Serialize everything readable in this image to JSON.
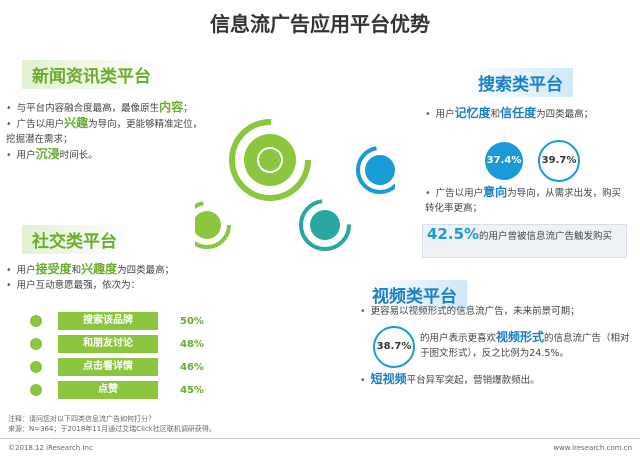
{
  "title": "信息流广告应用平台优势",
  "news": {
    "title": "新闻资讯类平台",
    "items": [
      [
        "与平台内容融合度最高，最像原生",
        {
          "em": "内容"
        },
        "；"
      ],
      [
        "广告以用户",
        {
          "em": "兴趣"
        },
        "为导向，更能够精准定位，挖掘潜在需求；"
      ],
      [
        "用户",
        {
          "em": "沉浸"
        },
        "时间长。"
      ]
    ]
  },
  "social": {
    "title": "社交类平台",
    "items": [
      [
        "用户",
        {
          "em": "接受度"
        },
        "和",
        {
          "em": "兴趣度"
        },
        "为四类最高；"
      ],
      [
        "用户互动意愿最强，依次为："
      ]
    ],
    "ranking": [
      [
        "搜索该品牌",
        "50%"
      ],
      [
        "和朋友讨论",
        "48%"
      ],
      [
        "点击看详情",
        "46%"
      ],
      [
        "点赞",
        "45%"
      ]
    ]
  },
  "search": {
    "title": "搜索类平台",
    "items": [
      [
        "用户",
        {
          "em": "记忆度"
        },
        "和",
        {
          "em": "信任度"
        },
        "为四类最高；"
      ],
      [
        "广告以用户",
        {
          "em": "意向"
        },
        "为导向，从需求出发，购买转化率更高；"
      ]
    ],
    "stats": [
      "37.4%",
      "39.7%"
    ],
    "box": {
      "value": "42.5%",
      "text": "的用户曾被信息流广告触发购买"
    }
  },
  "video": {
    "title": "视频类平台",
    "items": [
      [
        "更容易以视频形式的信息流广告，未来前景可期；"
      ],
      [
        {
          "em": "短视频"
        },
        "平台异军突起，营销爆款频出。"
      ]
    ],
    "stat": "38.7%",
    "stat_text": [
      "的用户表示更喜欢",
      {
        "em": "视频形式"
      },
      "的信息流广告（相对于图文形式），反之比例为24.5%。"
    ]
  },
  "notes": [
    "注释：请问您对以下四类信息流广告如何打分？",
    "来源：N=364；于2018年11月通过艾瑞Click社区联机调研获得。"
  ],
  "footer": {
    "left": "©2018.12 iResearch Inc",
    "right": "www.iresearch.com.cn"
  }
}
